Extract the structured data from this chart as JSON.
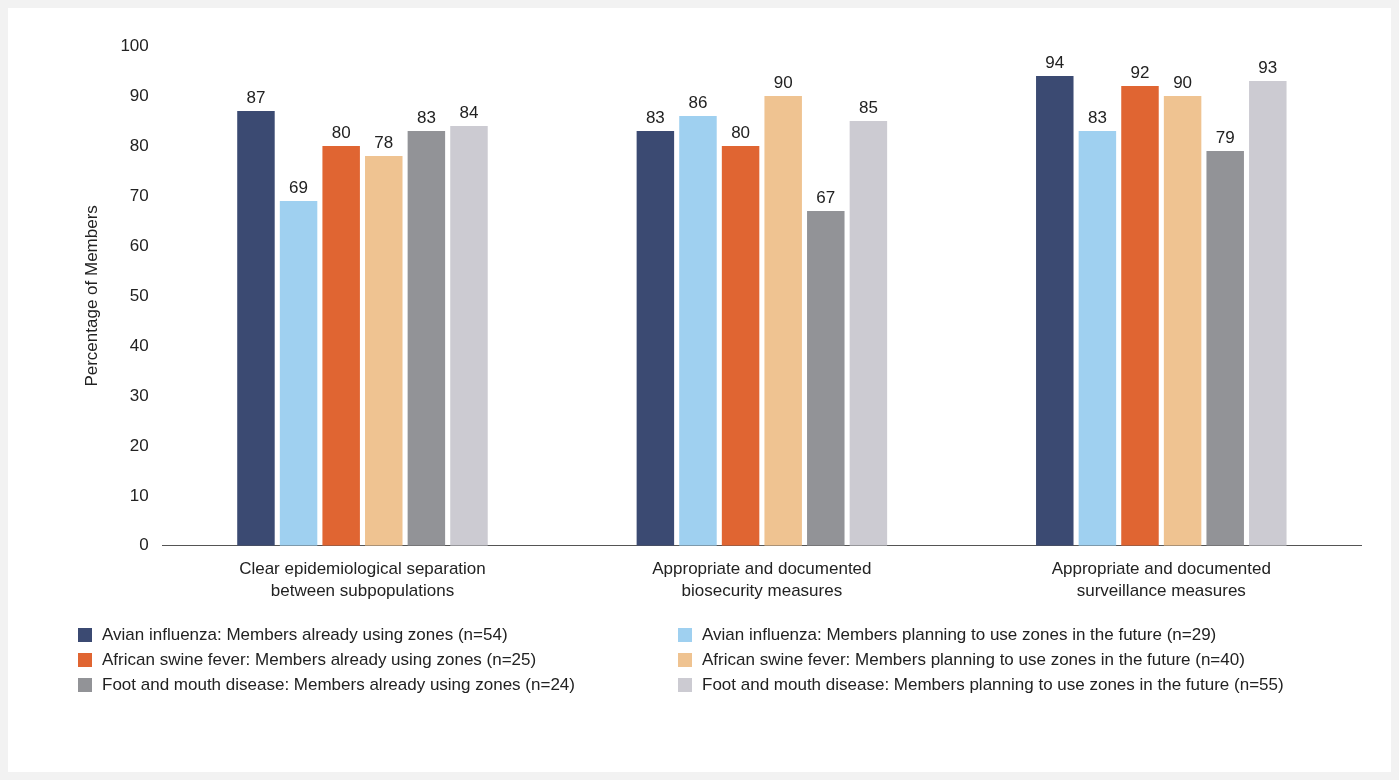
{
  "chart_data": {
    "type": "bar",
    "ylabel": "Percentage of Members",
    "categories": [
      "Clear epidemiological separation between subpopulations",
      "Appropriate and documented biosecurity measures",
      "Appropriate and documented surveillance measures"
    ],
    "series": [
      {
        "name": "Avian influenza: Members already using zones (n=54)",
        "color": "#3b4a72",
        "values": [
          87,
          83,
          94
        ]
      },
      {
        "name": "Avian influenza: Members planning to use zones in the future (n=29)",
        "color": "#9fd0f0",
        "values": [
          69,
          86,
          83
        ]
      },
      {
        "name": "African swine fever: Members already using zones (n=25)",
        "color": "#e06532",
        "values": [
          80,
          80,
          92
        ]
      },
      {
        "name": "African swine fever: Members planning to use zones in the future (n=40)",
        "color": "#efc391",
        "values": [
          78,
          90,
          90
        ]
      },
      {
        "name": "Foot and mouth disease: Members already using zones (n=24)",
        "color": "#929397",
        "values": [
          83,
          67,
          79
        ]
      },
      {
        "name": "Foot and mouth disease: Members planning to use zones in the future (n=55)",
        "color": "#cccbd2",
        "values": [
          84,
          85,
          93
        ]
      }
    ],
    "ylim": [
      0,
      100
    ],
    "yticks": [
      0,
      10,
      20,
      30,
      40,
      50,
      60,
      70,
      80,
      90,
      100
    ],
    "grid": false,
    "data_labels": true,
    "legend": "bottom"
  }
}
